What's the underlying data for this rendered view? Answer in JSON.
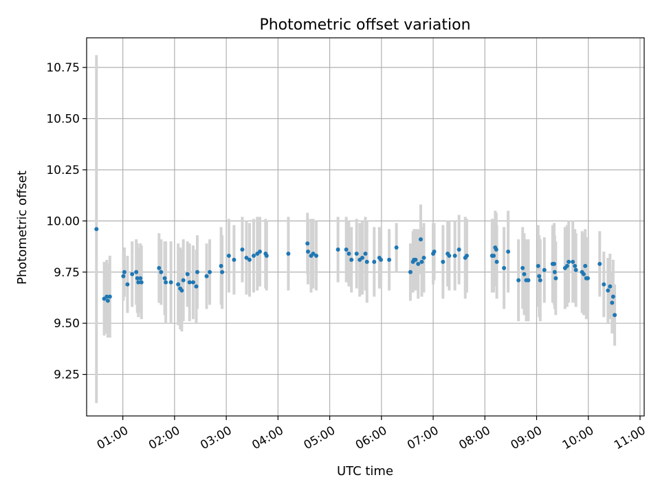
{
  "chart_data": {
    "type": "scatter",
    "title": "Photometric offset variation",
    "xlabel": "UTC time",
    "ylabel": "Photometric offset",
    "grid": true,
    "xlim": [
      0.3,
      11.08
    ],
    "ylim": [
      9.047,
      10.895
    ],
    "x_unit": "hours UTC",
    "x_ticks": [
      {
        "value": 1,
        "label": "01:00"
      },
      {
        "value": 2,
        "label": "02:00"
      },
      {
        "value": 3,
        "label": "03:00"
      },
      {
        "value": 4,
        "label": "04:00"
      },
      {
        "value": 5,
        "label": "05:00"
      },
      {
        "value": 6,
        "label": "06:00"
      },
      {
        "value": 7,
        "label": "07:00"
      },
      {
        "value": 8,
        "label": "08:00"
      },
      {
        "value": 9,
        "label": "09:00"
      },
      {
        "value": 10,
        "label": "10:00"
      },
      {
        "value": 11,
        "label": "11:00"
      }
    ],
    "y_ticks": [
      {
        "value": 9.25,
        "label": "9.25"
      },
      {
        "value": 9.5,
        "label": "9.50"
      },
      {
        "value": 9.75,
        "label": "9.75"
      },
      {
        "value": 10.0,
        "label": "10.00"
      },
      {
        "value": 10.25,
        "label": "10.25"
      },
      {
        "value": 10.5,
        "label": "10.50"
      },
      {
        "value": 10.75,
        "label": "10.75"
      }
    ],
    "colors": {
      "point": "#1f77b4",
      "errorbar": "#d3d3d3",
      "grid": "#b0b0b0"
    },
    "series": [
      {
        "name": "offset",
        "points": [
          [
            0.49,
            9.96,
            0.85
          ],
          [
            0.64,
            9.62,
            0.18
          ],
          [
            0.69,
            9.63,
            0.18
          ],
          [
            0.71,
            9.61,
            0.18
          ],
          [
            0.75,
            9.63,
            0.2
          ],
          [
            1.01,
            9.73,
            0.12
          ],
          [
            1.03,
            9.75,
            0.12
          ],
          [
            1.09,
            9.69,
            0.14
          ],
          [
            1.18,
            9.74,
            0.16
          ],
          [
            1.26,
            9.75,
            0.16
          ],
          [
            1.28,
            9.72,
            0.17
          ],
          [
            1.3,
            9.7,
            0.17
          ],
          [
            1.34,
            9.72,
            0.17
          ],
          [
            1.36,
            9.7,
            0.18
          ],
          [
            1.7,
            9.77,
            0.17
          ],
          [
            1.74,
            9.75,
            0.16
          ],
          [
            1.81,
            9.72,
            0.18
          ],
          [
            1.83,
            9.7,
            0.2
          ],
          [
            1.93,
            9.7,
            0.2
          ],
          [
            2.07,
            9.69,
            0.2
          ],
          [
            2.11,
            9.67,
            0.2
          ],
          [
            2.14,
            9.66,
            0.2
          ],
          [
            2.17,
            9.71,
            0.2
          ],
          [
            2.25,
            9.74,
            0.16
          ],
          [
            2.29,
            9.7,
            0.19
          ],
          [
            2.36,
            9.7,
            0.18
          ],
          [
            2.42,
            9.68,
            0.18
          ],
          [
            2.44,
            9.75,
            0.18
          ],
          [
            2.62,
            9.73,
            0.16
          ],
          [
            2.68,
            9.75,
            0.16
          ],
          [
            2.9,
            9.78,
            0.19
          ],
          [
            2.92,
            9.75,
            0.18
          ],
          [
            3.05,
            9.83,
            0.18
          ],
          [
            3.15,
            9.81,
            0.17
          ],
          [
            3.31,
            9.86,
            0.16
          ],
          [
            3.39,
            9.82,
            0.18
          ],
          [
            3.45,
            9.81,
            0.18
          ],
          [
            3.53,
            9.83,
            0.18
          ],
          [
            3.6,
            9.84,
            0.18
          ],
          [
            3.65,
            9.85,
            0.17
          ],
          [
            3.76,
            9.84,
            0.17
          ],
          [
            3.78,
            9.83,
            0.17
          ],
          [
            4.2,
            9.84,
            0.18
          ],
          [
            4.57,
            9.89,
            0.15
          ],
          [
            4.58,
            9.85,
            0.16
          ],
          [
            4.64,
            9.83,
            0.18
          ],
          [
            4.68,
            9.84,
            0.17
          ],
          [
            4.74,
            9.83,
            0.17
          ],
          [
            5.16,
            9.86,
            0.16
          ],
          [
            5.32,
            9.86,
            0.16
          ],
          [
            5.37,
            9.84,
            0.16
          ],
          [
            5.42,
            9.81,
            0.16
          ],
          [
            5.52,
            9.84,
            0.17
          ],
          [
            5.58,
            9.81,
            0.18
          ],
          [
            5.63,
            9.82,
            0.18
          ],
          [
            5.69,
            9.84,
            0.18
          ],
          [
            5.72,
            9.8,
            0.2
          ],
          [
            5.86,
            9.8,
            0.17
          ],
          [
            5.96,
            9.82,
            0.15
          ],
          [
            5.99,
            9.81,
            0.14
          ],
          [
            6.15,
            9.81,
            0.15
          ],
          [
            6.29,
            9.87,
            0.12
          ],
          [
            6.56,
            9.75,
            0.14
          ],
          [
            6.61,
            9.8,
            0.15
          ],
          [
            6.63,
            9.81,
            0.15
          ],
          [
            6.66,
            9.81,
            0.15
          ],
          [
            6.71,
            9.79,
            0.17
          ],
          [
            6.76,
            9.91,
            0.17
          ],
          [
            6.78,
            9.8,
            0.17
          ],
          [
            6.82,
            9.82,
            0.17
          ],
          [
            7.0,
            9.84,
            0.15
          ],
          [
            7.02,
            9.85,
            0.14
          ],
          [
            7.19,
            9.8,
            0.18
          ],
          [
            7.28,
            9.84,
            0.16
          ],
          [
            7.31,
            9.83,
            0.17
          ],
          [
            7.42,
            9.83,
            0.17
          ],
          [
            7.5,
            9.86,
            0.17
          ],
          [
            7.62,
            9.82,
            0.2
          ],
          [
            7.65,
            9.83,
            0.18
          ],
          [
            8.14,
            9.83,
            0.18
          ],
          [
            8.17,
            9.83,
            0.18
          ],
          [
            8.2,
            9.87,
            0.18
          ],
          [
            8.22,
            9.86,
            0.18
          ],
          [
            8.23,
            9.8,
            0.18
          ],
          [
            8.37,
            9.77,
            0.2
          ],
          [
            8.45,
            9.85,
            0.2
          ],
          [
            8.65,
            9.71,
            0.2
          ],
          [
            8.73,
            9.77,
            0.2
          ],
          [
            8.76,
            9.74,
            0.2
          ],
          [
            8.8,
            9.71,
            0.2
          ],
          [
            8.84,
            9.71,
            0.2
          ],
          [
            9.03,
            9.78,
            0.2
          ],
          [
            9.05,
            9.73,
            0.2
          ],
          [
            9.07,
            9.71,
            0.2
          ],
          [
            9.15,
            9.76,
            0.16
          ],
          [
            9.31,
            9.79,
            0.19
          ],
          [
            9.34,
            9.79,
            0.2
          ],
          [
            9.35,
            9.75,
            0.18
          ],
          [
            9.37,
            9.72,
            0.18
          ],
          [
            9.55,
            9.77,
            0.2
          ],
          [
            9.59,
            9.78,
            0.2
          ],
          [
            9.62,
            9.8,
            0.2
          ],
          [
            9.7,
            9.8,
            0.2
          ],
          [
            9.74,
            9.78,
            0.18
          ],
          [
            9.76,
            9.76,
            0.18
          ],
          [
            9.88,
            9.75,
            0.2
          ],
          [
            9.91,
            9.74,
            0.2
          ],
          [
            9.94,
            9.78,
            0.18
          ],
          [
            9.96,
            9.72,
            0.2
          ],
          [
            9.99,
            9.72,
            0.2
          ],
          [
            10.22,
            9.79,
            0.16
          ],
          [
            10.3,
            9.69,
            0.16
          ],
          [
            10.38,
            9.66,
            0.16
          ],
          [
            10.42,
            9.68,
            0.16
          ],
          [
            10.46,
            9.6,
            0.15
          ],
          [
            10.48,
            9.63,
            0.18
          ],
          [
            10.51,
            9.54,
            0.15
          ]
        ]
      }
    ]
  }
}
